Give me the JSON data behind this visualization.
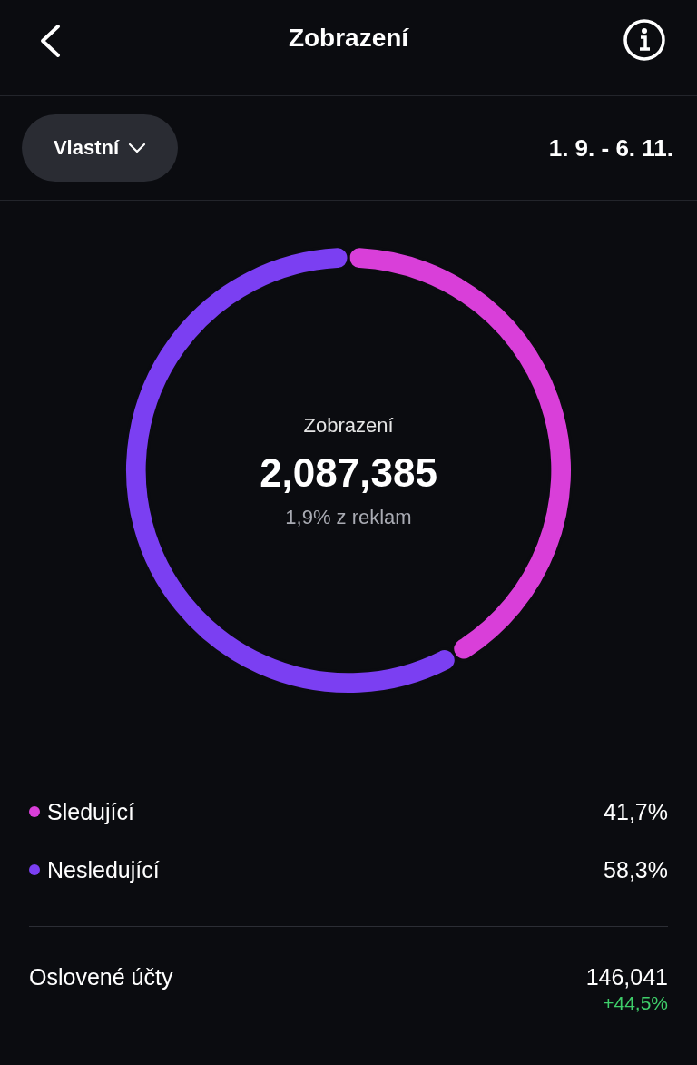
{
  "chart_data": {
    "type": "donut",
    "title": "Zobrazení",
    "categories": [
      "Sledující",
      "Nesledující"
    ],
    "values": [
      41.7,
      58.3
    ],
    "colors": [
      "#d93fd9",
      "#7b3ff2"
    ],
    "value_labels": [
      "41,7%",
      "58,3%"
    ],
    "legend": "bottom",
    "annotations": [
      "Vlastní",
      "1. 9. - 6. 11.",
      "Zobrazení",
      "2,087,385",
      "1,9% z reklam",
      "Oslovené účty",
      "146,041",
      "+44,5%"
    ]
  }
}
